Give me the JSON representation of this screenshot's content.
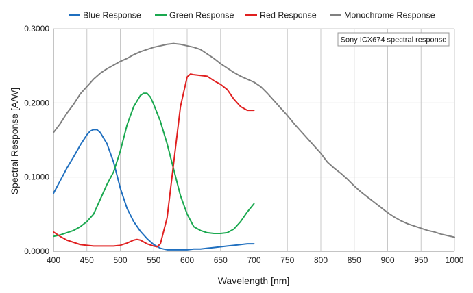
{
  "chart_data": {
    "type": "line",
    "title": "",
    "annotation": "Sony ICX674 spectral response",
    "xlabel": "Wavelength [nm]",
    "ylabel": "Spectral Response [A/W]",
    "xlim": [
      400,
      1000
    ],
    "ylim": [
      0,
      0.3
    ],
    "x_ticks": [
      "400",
      "450",
      "500",
      "550",
      "600",
      "650",
      "700",
      "750",
      "800",
      "850",
      "900",
      "950",
      "1000"
    ],
    "y_ticks": [
      "0.0000",
      "0.1000",
      "0.2000",
      "0.3000"
    ],
    "grid": true,
    "legend_position": "top",
    "series": [
      {
        "name": "Blue Response",
        "color": "#1f6fbf",
        "x": [
          400,
          410,
          420,
          430,
          440,
          450,
          455,
          460,
          465,
          470,
          480,
          490,
          500,
          510,
          520,
          530,
          540,
          550,
          560,
          570,
          580,
          590,
          600,
          610,
          620,
          630,
          640,
          650,
          660,
          670,
          680,
          690,
          700
        ],
        "y": [
          0.078,
          0.095,
          0.112,
          0.127,
          0.143,
          0.157,
          0.162,
          0.164,
          0.164,
          0.16,
          0.145,
          0.12,
          0.085,
          0.058,
          0.04,
          0.027,
          0.017,
          0.009,
          0.004,
          0.002,
          0.002,
          0.002,
          0.002,
          0.003,
          0.003,
          0.004,
          0.005,
          0.006,
          0.007,
          0.008,
          0.009,
          0.01,
          0.01
        ]
      },
      {
        "name": "Green Response",
        "color": "#1aa84f",
        "x": [
          400,
          410,
          420,
          430,
          440,
          450,
          460,
          470,
          480,
          490,
          500,
          510,
          520,
          530,
          535,
          540,
          545,
          550,
          560,
          570,
          580,
          590,
          600,
          610,
          620,
          630,
          640,
          650,
          660,
          670,
          680,
          690,
          700
        ],
        "y": [
          0.02,
          0.022,
          0.025,
          0.028,
          0.033,
          0.04,
          0.05,
          0.07,
          0.09,
          0.107,
          0.135,
          0.17,
          0.195,
          0.21,
          0.213,
          0.213,
          0.208,
          0.198,
          0.175,
          0.145,
          0.11,
          0.075,
          0.05,
          0.033,
          0.028,
          0.025,
          0.024,
          0.024,
          0.025,
          0.03,
          0.04,
          0.053,
          0.064
        ]
      },
      {
        "name": "Red Response",
        "color": "#e02020",
        "x": [
          400,
          410,
          420,
          430,
          440,
          450,
          460,
          470,
          480,
          490,
          500,
          510,
          520,
          525,
          530,
          540,
          550,
          555,
          560,
          570,
          580,
          590,
          595,
          600,
          605,
          610,
          620,
          630,
          640,
          650,
          660,
          670,
          680,
          690,
          700
        ],
        "y": [
          0.026,
          0.02,
          0.015,
          0.012,
          0.009,
          0.008,
          0.007,
          0.007,
          0.007,
          0.007,
          0.008,
          0.011,
          0.015,
          0.016,
          0.015,
          0.01,
          0.007,
          0.006,
          0.01,
          0.045,
          0.12,
          0.195,
          0.215,
          0.235,
          0.239,
          0.238,
          0.237,
          0.236,
          0.23,
          0.225,
          0.218,
          0.205,
          0.195,
          0.19,
          0.19
        ]
      },
      {
        "name": "Monochrome Response",
        "color": "#808080",
        "x": [
          400,
          410,
          420,
          430,
          440,
          450,
          460,
          470,
          480,
          490,
          500,
          510,
          520,
          530,
          540,
          550,
          560,
          570,
          580,
          590,
          600,
          610,
          620,
          630,
          640,
          650,
          660,
          670,
          680,
          690,
          700,
          710,
          720,
          730,
          740,
          750,
          760,
          770,
          780,
          790,
          800,
          810,
          820,
          830,
          840,
          850,
          860,
          870,
          880,
          890,
          900,
          910,
          920,
          930,
          940,
          950,
          960,
          970,
          980,
          990,
          1000
        ],
        "y": [
          0.16,
          0.172,
          0.186,
          0.198,
          0.212,
          0.222,
          0.232,
          0.24,
          0.246,
          0.251,
          0.256,
          0.26,
          0.265,
          0.269,
          0.272,
          0.275,
          0.277,
          0.279,
          0.28,
          0.279,
          0.277,
          0.275,
          0.272,
          0.266,
          0.26,
          0.253,
          0.247,
          0.241,
          0.236,
          0.232,
          0.228,
          0.222,
          0.213,
          0.203,
          0.193,
          0.183,
          0.172,
          0.162,
          0.152,
          0.142,
          0.132,
          0.12,
          0.112,
          0.105,
          0.097,
          0.088,
          0.08,
          0.073,
          0.066,
          0.059,
          0.052,
          0.046,
          0.041,
          0.037,
          0.034,
          0.031,
          0.028,
          0.026,
          0.023,
          0.021,
          0.019
        ]
      }
    ]
  }
}
